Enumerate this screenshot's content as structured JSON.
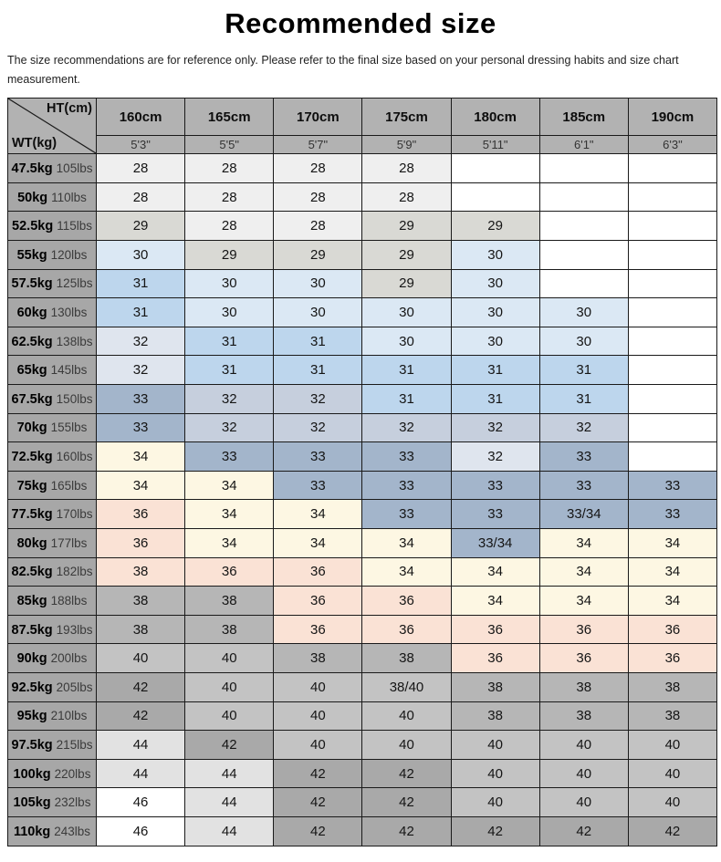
{
  "title": "Recommended size",
  "subtitle": "The size recommendations are for reference only. Please refer to the final size based on your personal dressing habits and size chart measurement.",
  "palette": {
    "W": "#ffffff",
    "N": "#efefef",
    "G29": "#d9d9d4",
    "B30": "#dbe8f4",
    "B31": "#bdd6ed",
    "B32L": "#dfe5ee",
    "B32": "#c6cfdd",
    "B33": "#a3b5cb",
    "CRM": "#fdf7e3",
    "PNK": "#fae2d5",
    "G38": "#b6b6b6",
    "G40": "#c3c3c3",
    "G42": "#a9a9a9",
    "G44": "#e2e2e2",
    "HEAD": "#b2b2b2",
    "LABEL": "#a7a7a7"
  },
  "table": {
    "corner": {
      "top": "HT(cm)",
      "bottom": "WT(kg)"
    },
    "columns": [
      {
        "cm": "160cm",
        "ft": "5'3\""
      },
      {
        "cm": "165cm",
        "ft": "5'5\""
      },
      {
        "cm": "170cm",
        "ft": "5'7\""
      },
      {
        "cm": "175cm",
        "ft": "5'9\""
      },
      {
        "cm": "180cm",
        "ft": "5'11\""
      },
      {
        "cm": "185cm",
        "ft": "6'1\""
      },
      {
        "cm": "190cm",
        "ft": "6'3\""
      }
    ],
    "rows": [
      {
        "kg": "47.5kg",
        "lbs": "105lbs",
        "cells": [
          [
            "28",
            "N"
          ],
          [
            "28",
            "N"
          ],
          [
            "28",
            "N"
          ],
          [
            "28",
            "N"
          ],
          [
            "",
            "W"
          ],
          [
            "",
            "W"
          ],
          [
            "",
            "W"
          ]
        ]
      },
      {
        "kg": "50kg",
        "lbs": "110lbs",
        "cells": [
          [
            "28",
            "N"
          ],
          [
            "28",
            "N"
          ],
          [
            "28",
            "N"
          ],
          [
            "28",
            "N"
          ],
          [
            "",
            "W"
          ],
          [
            "",
            "W"
          ],
          [
            "",
            "W"
          ]
        ]
      },
      {
        "kg": "52.5kg",
        "lbs": "115lbs",
        "cells": [
          [
            "29",
            "G29"
          ],
          [
            "28",
            "N"
          ],
          [
            "28",
            "N"
          ],
          [
            "29",
            "G29"
          ],
          [
            "29",
            "G29"
          ],
          [
            "",
            "W"
          ],
          [
            "",
            "W"
          ]
        ]
      },
      {
        "kg": "55kg",
        "lbs": "120lbs",
        "cells": [
          [
            "30",
            "B30"
          ],
          [
            "29",
            "G29"
          ],
          [
            "29",
            "G29"
          ],
          [
            "29",
            "G29"
          ],
          [
            "30",
            "B30"
          ],
          [
            "",
            "W"
          ],
          [
            "",
            "W"
          ]
        ]
      },
      {
        "kg": "57.5kg",
        "lbs": "125lbs",
        "cells": [
          [
            "31",
            "B31"
          ],
          [
            "30",
            "B30"
          ],
          [
            "30",
            "B30"
          ],
          [
            "29",
            "G29"
          ],
          [
            "30",
            "B30"
          ],
          [
            "",
            "W"
          ],
          [
            "",
            "W"
          ]
        ]
      },
      {
        "kg": "60kg",
        "lbs": "130lbs",
        "cells": [
          [
            "31",
            "B31"
          ],
          [
            "30",
            "B30"
          ],
          [
            "30",
            "B30"
          ],
          [
            "30",
            "B30"
          ],
          [
            "30",
            "B30"
          ],
          [
            "30",
            "B30"
          ],
          [
            "",
            "W"
          ]
        ]
      },
      {
        "kg": "62.5kg",
        "lbs": "138lbs",
        "cells": [
          [
            "32",
            "B32L"
          ],
          [
            "31",
            "B31"
          ],
          [
            "31",
            "B31"
          ],
          [
            "30",
            "B30"
          ],
          [
            "30",
            "B30"
          ],
          [
            "30",
            "B30"
          ],
          [
            "",
            "W"
          ]
        ]
      },
      {
        "kg": "65kg",
        "lbs": "145lbs",
        "cells": [
          [
            "32",
            "B32L"
          ],
          [
            "31",
            "B31"
          ],
          [
            "31",
            "B31"
          ],
          [
            "31",
            "B31"
          ],
          [
            "31",
            "B31"
          ],
          [
            "31",
            "B31"
          ],
          [
            "",
            "W"
          ]
        ]
      },
      {
        "kg": "67.5kg",
        "lbs": "150lbs",
        "cells": [
          [
            "33",
            "B33"
          ],
          [
            "32",
            "B32"
          ],
          [
            "32",
            "B32"
          ],
          [
            "31",
            "B31"
          ],
          [
            "31",
            "B31"
          ],
          [
            "31",
            "B31"
          ],
          [
            "",
            "W"
          ]
        ]
      },
      {
        "kg": "70kg",
        "lbs": "155lbs",
        "cells": [
          [
            "33",
            "B33"
          ],
          [
            "32",
            "B32"
          ],
          [
            "32",
            "B32"
          ],
          [
            "32",
            "B32"
          ],
          [
            "32",
            "B32"
          ],
          [
            "32",
            "B32"
          ],
          [
            "",
            "W"
          ]
        ]
      },
      {
        "kg": "72.5kg",
        "lbs": "160lbs",
        "cells": [
          [
            "34",
            "CRM"
          ],
          [
            "33",
            "B33"
          ],
          [
            "33",
            "B33"
          ],
          [
            "33",
            "B33"
          ],
          [
            "32",
            "B32L"
          ],
          [
            "33",
            "B33"
          ],
          [
            "",
            "W"
          ]
        ]
      },
      {
        "kg": "75kg",
        "lbs": "165lbs",
        "cells": [
          [
            "34",
            "CRM"
          ],
          [
            "34",
            "CRM"
          ],
          [
            "33",
            "B33"
          ],
          [
            "33",
            "B33"
          ],
          [
            "33",
            "B33"
          ],
          [
            "33",
            "B33"
          ],
          [
            "33",
            "B33"
          ]
        ]
      },
      {
        "kg": "77.5kg",
        "lbs": "170lbs",
        "cells": [
          [
            "36",
            "PNK"
          ],
          [
            "34",
            "CRM"
          ],
          [
            "34",
            "CRM"
          ],
          [
            "33",
            "B33"
          ],
          [
            "33",
            "B33"
          ],
          [
            "33/34",
            "B33"
          ],
          [
            "33",
            "B33"
          ]
        ]
      },
      {
        "kg": "80kg",
        "lbs": "177lbs",
        "cells": [
          [
            "36",
            "PNK"
          ],
          [
            "34",
            "CRM"
          ],
          [
            "34",
            "CRM"
          ],
          [
            "34",
            "CRM"
          ],
          [
            "33/34",
            "B33"
          ],
          [
            "34",
            "CRM"
          ],
          [
            "34",
            "CRM"
          ]
        ]
      },
      {
        "kg": "82.5kg",
        "lbs": "182lbs",
        "cells": [
          [
            "38",
            "PNK"
          ],
          [
            "36",
            "PNK"
          ],
          [
            "36",
            "PNK"
          ],
          [
            "34",
            "CRM"
          ],
          [
            "34",
            "CRM"
          ],
          [
            "34",
            "CRM"
          ],
          [
            "34",
            "CRM"
          ]
        ]
      },
      {
        "kg": "85kg",
        "lbs": "188lbs",
        "cells": [
          [
            "38",
            "G38"
          ],
          [
            "38",
            "G38"
          ],
          [
            "36",
            "PNK"
          ],
          [
            "36",
            "PNK"
          ],
          [
            "34",
            "CRM"
          ],
          [
            "34",
            "CRM"
          ],
          [
            "34",
            "CRM"
          ]
        ]
      },
      {
        "kg": "87.5kg",
        "lbs": "193lbs",
        "cells": [
          [
            "38",
            "G38"
          ],
          [
            "38",
            "G38"
          ],
          [
            "36",
            "PNK"
          ],
          [
            "36",
            "PNK"
          ],
          [
            "36",
            "PNK"
          ],
          [
            "36",
            "PNK"
          ],
          [
            "36",
            "PNK"
          ]
        ]
      },
      {
        "kg": "90kg",
        "lbs": "200lbs",
        "cells": [
          [
            "40",
            "G40"
          ],
          [
            "40",
            "G40"
          ],
          [
            "38",
            "G38"
          ],
          [
            "38",
            "G38"
          ],
          [
            "36",
            "PNK"
          ],
          [
            "36",
            "PNK"
          ],
          [
            "36",
            "PNK"
          ]
        ]
      },
      {
        "kg": "92.5kg",
        "lbs": "205lbs",
        "cells": [
          [
            "42",
            "G42"
          ],
          [
            "40",
            "G40"
          ],
          [
            "40",
            "G40"
          ],
          [
            "38/40",
            "G40"
          ],
          [
            "38",
            "G38"
          ],
          [
            "38",
            "G38"
          ],
          [
            "38",
            "G38"
          ]
        ]
      },
      {
        "kg": "95kg",
        "lbs": "210lbs",
        "cells": [
          [
            "42",
            "G42"
          ],
          [
            "40",
            "G40"
          ],
          [
            "40",
            "G40"
          ],
          [
            "40",
            "G40"
          ],
          [
            "38",
            "G38"
          ],
          [
            "38",
            "G38"
          ],
          [
            "38",
            "G38"
          ]
        ]
      },
      {
        "kg": "97.5kg",
        "lbs": "215lbs",
        "cells": [
          [
            "44",
            "G44"
          ],
          [
            "42",
            "G42"
          ],
          [
            "40",
            "G40"
          ],
          [
            "40",
            "G40"
          ],
          [
            "40",
            "G40"
          ],
          [
            "40",
            "G40"
          ],
          [
            "40",
            "G40"
          ]
        ]
      },
      {
        "kg": "100kg",
        "lbs": "220lbs",
        "cells": [
          [
            "44",
            "G44"
          ],
          [
            "44",
            "G44"
          ],
          [
            "42",
            "G42"
          ],
          [
            "42",
            "G42"
          ],
          [
            "40",
            "G40"
          ],
          [
            "40",
            "G40"
          ],
          [
            "40",
            "G40"
          ]
        ]
      },
      {
        "kg": "105kg",
        "lbs": "232lbs",
        "cells": [
          [
            "46",
            "W"
          ],
          [
            "44",
            "G44"
          ],
          [
            "42",
            "G42"
          ],
          [
            "42",
            "G42"
          ],
          [
            "40",
            "G40"
          ],
          [
            "40",
            "G40"
          ],
          [
            "40",
            "G40"
          ]
        ]
      },
      {
        "kg": "110kg",
        "lbs": "243lbs",
        "cells": [
          [
            "46",
            "W"
          ],
          [
            "44",
            "G44"
          ],
          [
            "42",
            "G42"
          ],
          [
            "42",
            "G42"
          ],
          [
            "42",
            "G42"
          ],
          [
            "42",
            "G42"
          ],
          [
            "42",
            "G42"
          ]
        ]
      }
    ]
  }
}
